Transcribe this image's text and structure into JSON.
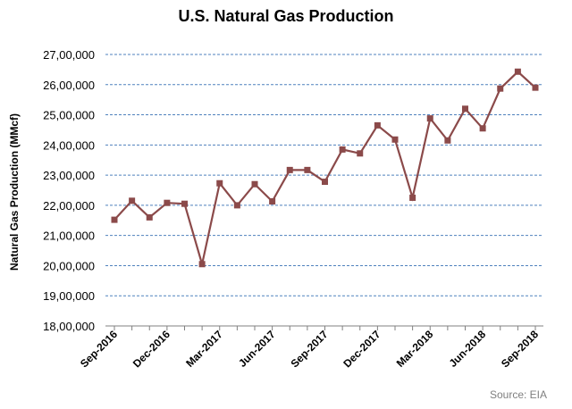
{
  "chart_data": {
    "type": "line",
    "title": "U.S. Natural Gas Production",
    "ylabel": "Natural Gas Production (MMcf)",
    "xlabel": "",
    "source": "Source: EIA",
    "ylim": [
      1800000,
      2700000
    ],
    "y_ticks": [
      "18,00,000",
      "19,00,000",
      "20,00,000",
      "21,00,000",
      "22,00,000",
      "23,00,000",
      "24,00,000",
      "25,00,000",
      "26,00,000",
      "27,00,000"
    ],
    "y_tick_values": [
      1800000,
      1900000,
      2000000,
      2100000,
      2200000,
      2300000,
      2400000,
      2500000,
      2600000,
      2700000
    ],
    "x_tick_labels": [
      "Sep-2016",
      "Dec-2016",
      "Mar-2017",
      "Jun-2017",
      "Sep-2017",
      "Dec-2017",
      "Mar-2018",
      "Jun-2018",
      "Sep-2018"
    ],
    "x_tick_indices": [
      0,
      3,
      6,
      9,
      12,
      15,
      18,
      21,
      24
    ],
    "grid": "horizontal dashed",
    "line_color": "#8b4a4a",
    "grid_color": "#4f81bd",
    "categories": [
      "Sep-2016",
      "Oct-2016",
      "Nov-2016",
      "Dec-2016",
      "Jan-2017",
      "Feb-2017",
      "Mar-2017",
      "Apr-2017",
      "May-2017",
      "Jun-2017",
      "Jul-2017",
      "Aug-2017",
      "Sep-2017",
      "Oct-2017",
      "Nov-2017",
      "Dec-2017",
      "Jan-2018",
      "Feb-2018",
      "Mar-2018",
      "Apr-2018",
      "May-2018",
      "Jun-2018",
      "Jul-2018",
      "Aug-2018",
      "Sep-2018"
    ],
    "values": [
      2152000,
      2215000,
      2160000,
      2208000,
      2205000,
      2005000,
      2273000,
      2200000,
      2270000,
      2213000,
      2317000,
      2317000,
      2278000,
      2385000,
      2372000,
      2465000,
      2418000,
      2225000,
      2488000,
      2415000,
      2520000,
      2455000,
      2587000,
      2643000,
      2590000
    ]
  }
}
